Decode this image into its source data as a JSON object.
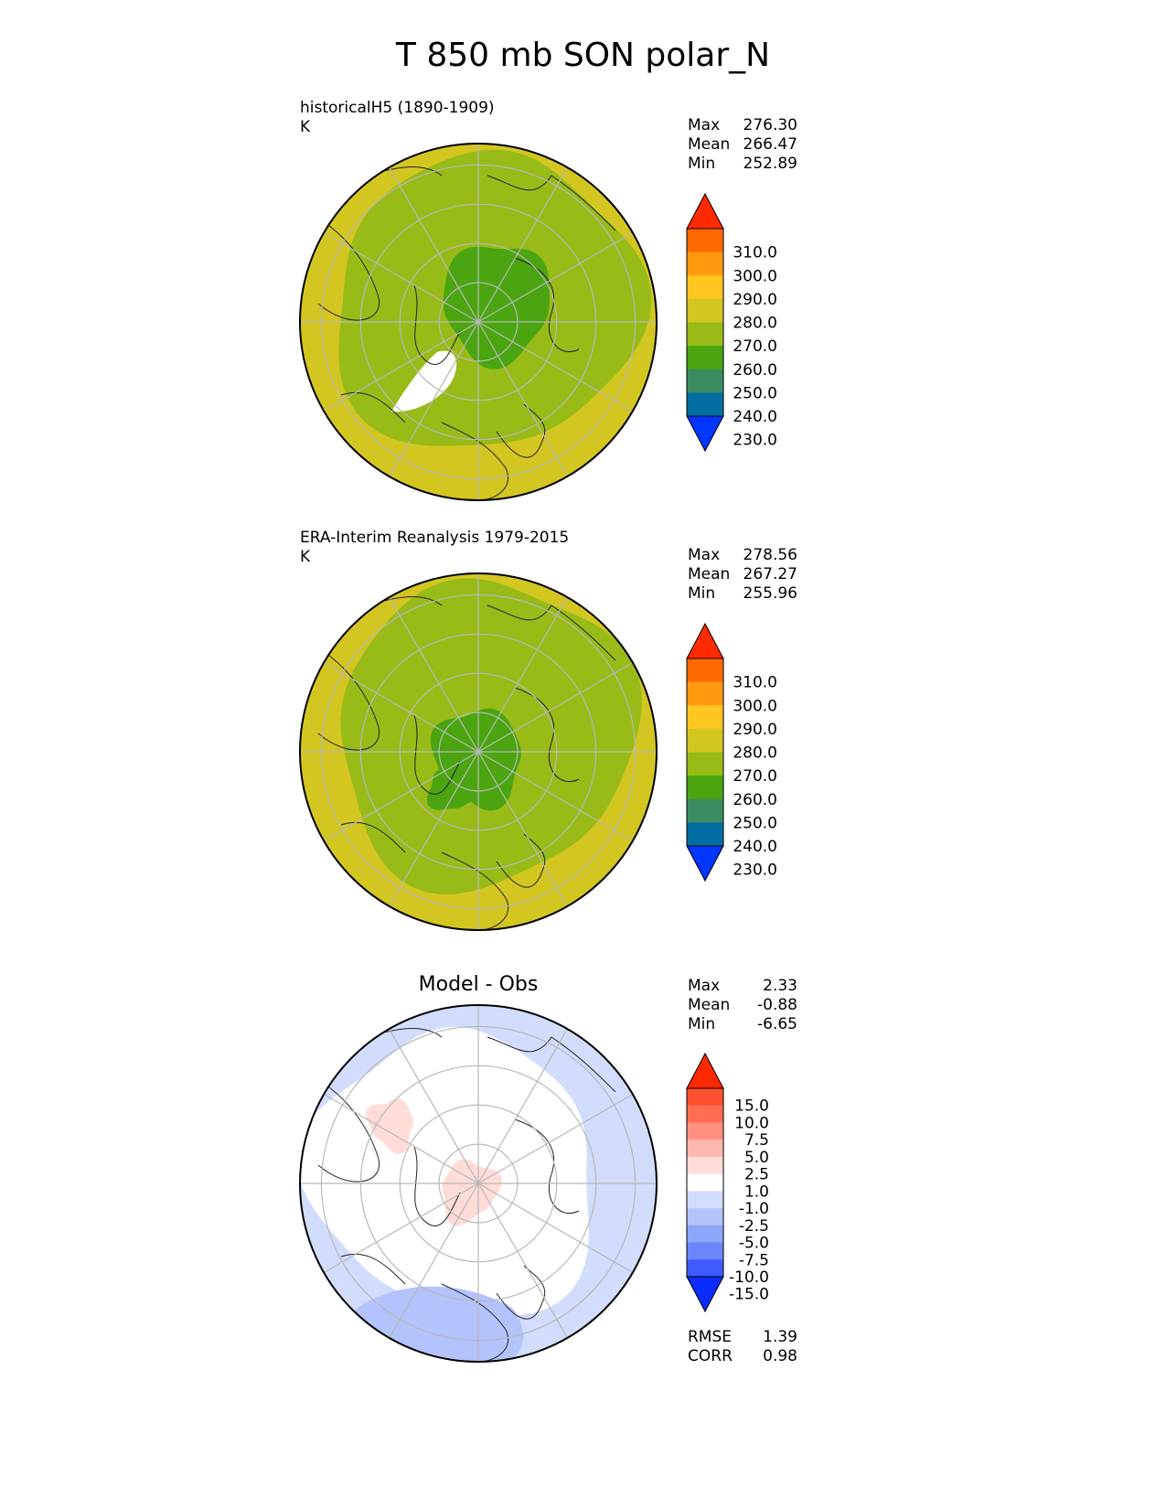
{
  "page": {
    "title": "T 850 mb SON polar_N"
  },
  "chart_data": [
    {
      "type": "heatmap",
      "projection": "north-polar-stereographic",
      "title": "",
      "label_line1": "historicalH5 (1890-1909)",
      "label_line2": "K",
      "stats": [
        {
          "key": "Max",
          "value": "276.30"
        },
        {
          "key": "Mean",
          "value": "266.47"
        },
        {
          "key": "Min",
          "value": "252.89"
        }
      ],
      "colorbar": {
        "levels": [
          "310.0",
          "300.0",
          "290.0",
          "280.0",
          "270.0",
          "260.0",
          "250.0",
          "240.0",
          "230.0"
        ],
        "colors_top_to_bottom": [
          "#ff2a00",
          "#ff6a00",
          "#ff9a10",
          "#ffc520",
          "#d3c620",
          "#98bb18",
          "#4aa510",
          "#3a8c60",
          "#006ea0",
          "#0036ff"
        ],
        "extend": "both"
      },
      "field_bands_outer_to_inner": [
        {
          "color": "#d3c620",
          "range": "270-280"
        },
        {
          "color": "#98bb18",
          "range": "260-270"
        },
        {
          "color": "#4aa510",
          "range": "250-260"
        }
      ]
    },
    {
      "type": "heatmap",
      "projection": "north-polar-stereographic",
      "title": "",
      "label_line1": "ERA-Interim Reanalysis 1979-2015",
      "label_line2": "K",
      "stats": [
        {
          "key": "Max",
          "value": "278.56"
        },
        {
          "key": "Mean",
          "value": "267.27"
        },
        {
          "key": "Min",
          "value": "255.96"
        }
      ],
      "colorbar": {
        "levels": [
          "310.0",
          "300.0",
          "290.0",
          "280.0",
          "270.0",
          "260.0",
          "250.0",
          "240.0",
          "230.0"
        ],
        "colors_top_to_bottom": [
          "#ff2a00",
          "#ff6a00",
          "#ff9a10",
          "#ffc520",
          "#d3c620",
          "#98bb18",
          "#4aa510",
          "#3a8c60",
          "#006ea0",
          "#0036ff"
        ],
        "extend": "both"
      },
      "field_bands_outer_to_inner": [
        {
          "color": "#d3c620",
          "range": "270-280"
        },
        {
          "color": "#98bb18",
          "range": "260-270"
        },
        {
          "color": "#4aa510",
          "range": "250-260"
        }
      ]
    },
    {
      "type": "heatmap",
      "projection": "north-polar-stereographic",
      "title": "Model - Obs",
      "label_line1": "",
      "label_line2": "",
      "stats": [
        {
          "key": "Max",
          "value": "2.33"
        },
        {
          "key": "Mean",
          "value": "-0.88"
        },
        {
          "key": "Min",
          "value": "-6.65"
        }
      ],
      "footer_stats": [
        {
          "key": "RMSE",
          "value": "1.39"
        },
        {
          "key": "CORR",
          "value": "0.98"
        }
      ],
      "colorbar": {
        "levels": [
          "15.0",
          "10.0",
          "7.5",
          "5.0",
          "2.5",
          "1.0",
          "-1.0",
          "-2.5",
          "-5.0",
          "-7.5",
          "-10.0",
          "-15.0"
        ],
        "colors_top_to_bottom": [
          "#ff2a00",
          "#ff5030",
          "#ff6e50",
          "#ff9080",
          "#ffb8b0",
          "#ffdcd8",
          "#ffffff",
          "#d2dcfc",
          "#b3c3fc",
          "#8ea6fc",
          "#6a86fc",
          "#3e5cff",
          "#0a2cff"
        ],
        "extend": "both"
      },
      "field_bands_outer_to_inner": [
        {
          "color": "#d2dcfc",
          "range": "-2.5 to -1.0"
        },
        {
          "color": "#ffffff",
          "range": "-1.0 to 1.0"
        },
        {
          "color": "#b3c3fc",
          "range": "-5.0 to -2.5"
        },
        {
          "color": "#ffdcd8",
          "range": "1.0 to 2.5"
        }
      ]
    }
  ]
}
